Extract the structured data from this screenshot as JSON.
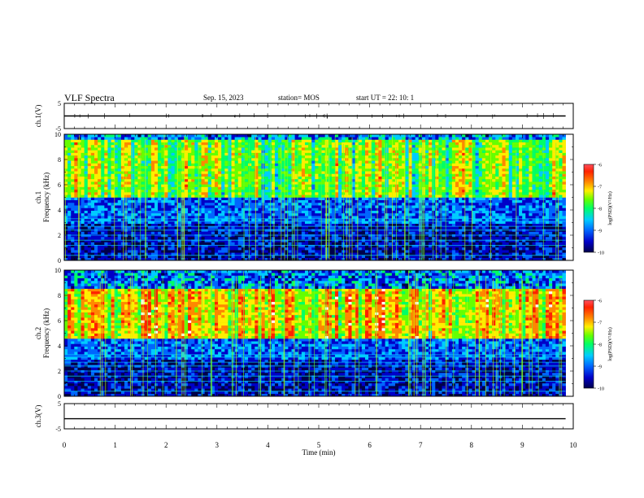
{
  "header": {
    "title": "VLF Spectra",
    "date": "Sep. 15, 2023",
    "station": "station= MOS",
    "start_ut": "start  UT =   22: 10: 1"
  },
  "colors": {
    "axis": "#000000",
    "colormap": [
      "#00004a",
      "#0000c8",
      "#0066ff",
      "#00ccff",
      "#00ff66",
      "#66ff00",
      "#ffee00",
      "#ff8800",
      "#ff2200",
      "#ffffff"
    ]
  },
  "chart_data": [
    {
      "type": "line",
      "panel": "ch1-waveform",
      "ylabel": "ch.1(V)",
      "ylim": [
        -5,
        5
      ],
      "yticks": [
        "5",
        "-5"
      ],
      "xlim": [
        0,
        10
      ],
      "description_level_V": 0,
      "series": [
        {
          "x": [
            0,
            9.85
          ],
          "y": [
            0,
            0
          ]
        }
      ]
    },
    {
      "type": "heatmap",
      "panel": "ch1-spectrogram",
      "ylabel": "ch.1\nFrequency (kHz)",
      "ylim": [
        0,
        10
      ],
      "yticks": [
        "0",
        "2",
        "4",
        "6",
        "8",
        "10"
      ],
      "xlim": [
        0,
        10
      ],
      "data_end_min": 9.85,
      "colorbar": {
        "label": "log(PSD)(V²/Hz)",
        "range": [
          -10,
          -6
        ],
        "ticks": [
          "-6",
          "-7",
          "-8",
          "-9",
          "-10"
        ]
      },
      "dominant_band_kHz": [
        5,
        9.6
      ],
      "peak_level": -7
    },
    {
      "type": "heatmap",
      "panel": "ch2-spectrogram",
      "ylabel": "ch.2\nFrequency (kHz)",
      "ylim": [
        0,
        10
      ],
      "yticks": [
        "0",
        "2",
        "4",
        "6",
        "8",
        "10"
      ],
      "xlim": [
        0,
        10
      ],
      "data_end_min": 9.85,
      "colorbar": {
        "label": "log(PSD)(V²/Hz)",
        "range": [
          -10,
          -6
        ],
        "ticks": [
          "-6",
          "-7",
          "-8",
          "-9",
          "-10"
        ]
      },
      "dominant_band_kHz": [
        4.5,
        8.5
      ],
      "peak_level": -6.8
    },
    {
      "type": "line",
      "panel": "ch3-waveform",
      "ylabel": "ch.3(V)",
      "ylim": [
        -5,
        5
      ],
      "yticks": [
        "5",
        "-5"
      ],
      "xlim": [
        0,
        10
      ],
      "xticks": [
        "0",
        "1",
        "2",
        "3",
        "4",
        "5",
        "6",
        "7",
        "8",
        "9",
        "10"
      ],
      "xlabel": "Time (min)",
      "series": [
        {
          "x": [
            0,
            9.85
          ],
          "y": [
            -1,
            -1
          ]
        }
      ]
    }
  ]
}
